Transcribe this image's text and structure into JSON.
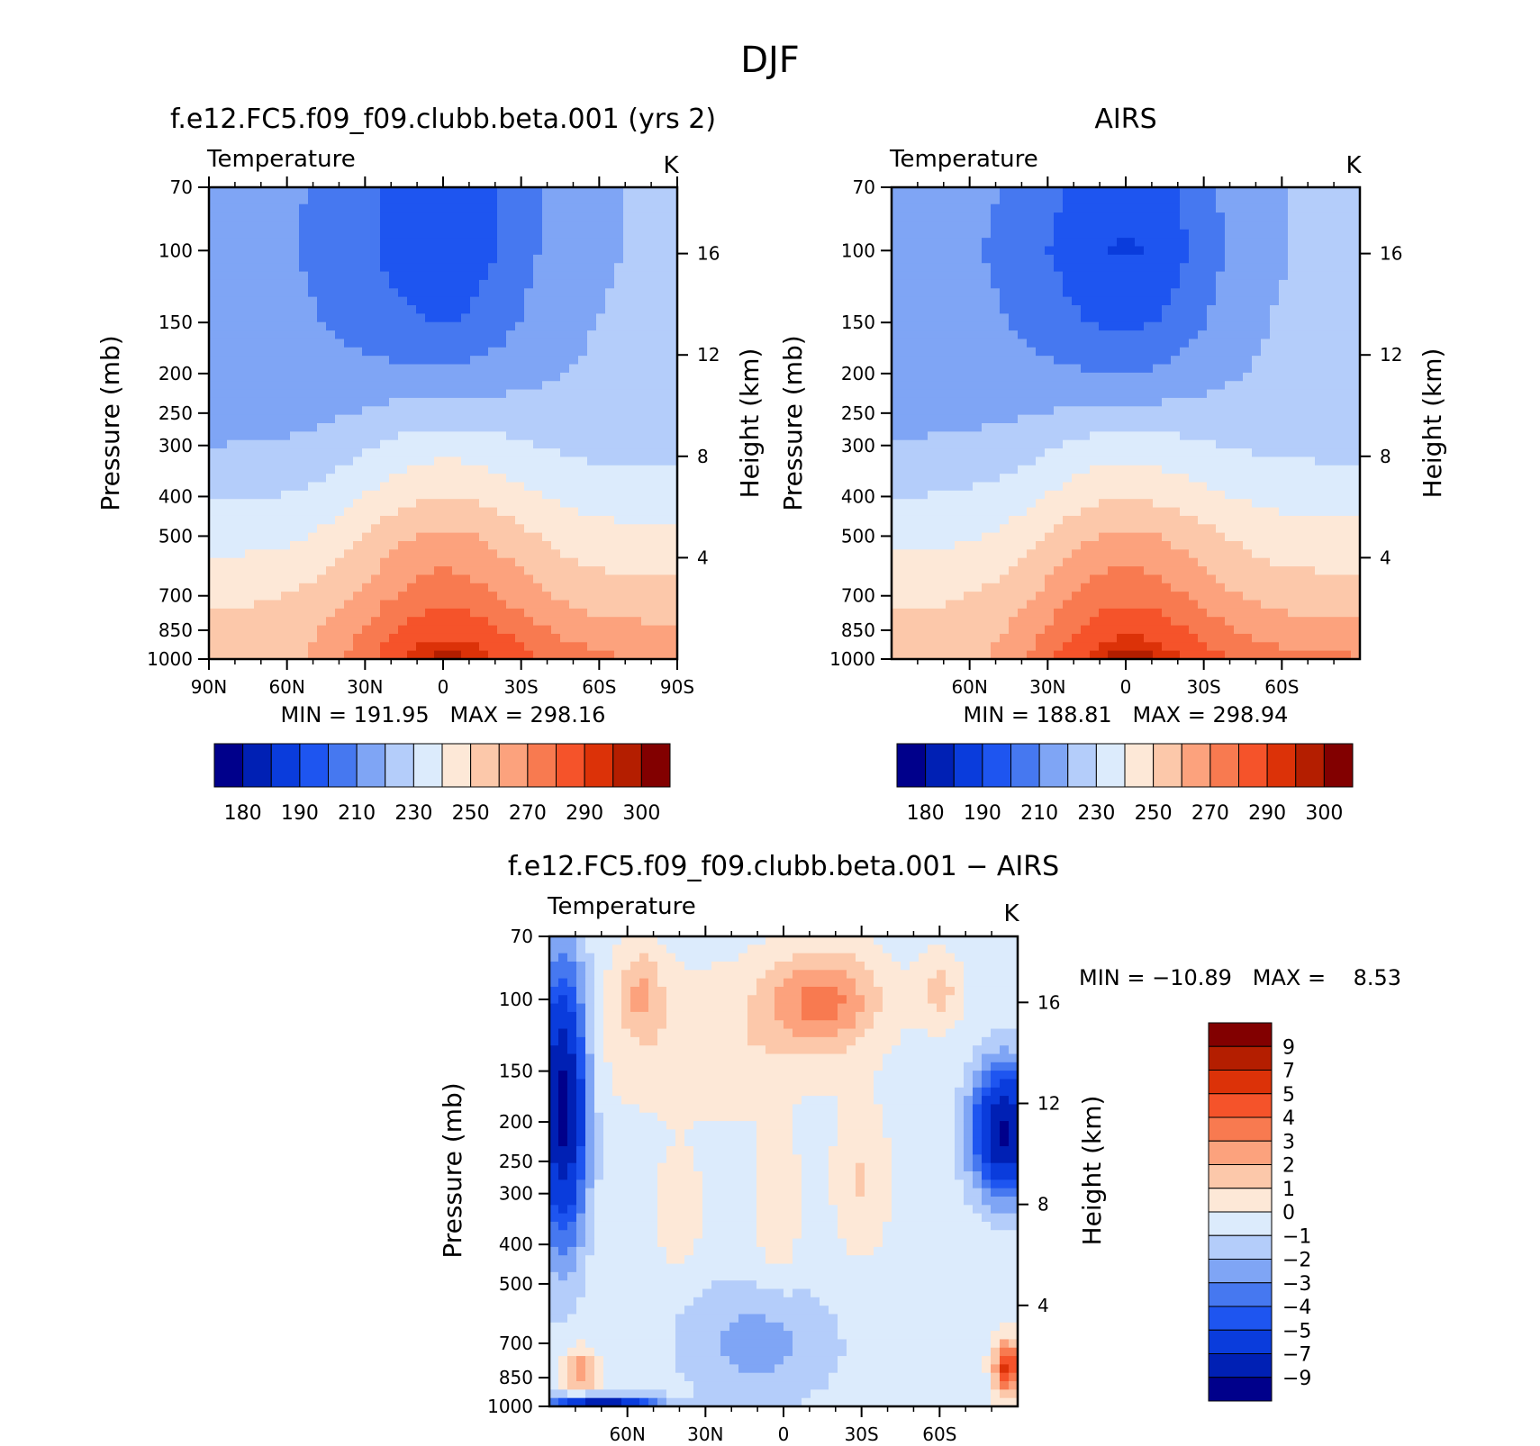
{
  "figure": {
    "title": "DJF"
  },
  "palettes": {
    "abs": [
      "#00008b",
      "#0020b4",
      "#0a3cdc",
      "#1e55f0",
      "#4678f0",
      "#7fa5f5",
      "#b4cdfa",
      "#dcebfc",
      "#fde8d7",
      "#fcc8aa",
      "#fca27d",
      "#f87a50",
      "#f5532a",
      "#dc3208",
      "#b41e00",
      "#820000"
    ],
    "diff": [
      "#00008b",
      "#0020b4",
      "#0a3cdc",
      "#1e55f0",
      "#4678f0",
      "#7fa5f5",
      "#b4cdfa",
      "#dcebfc",
      "#fde8d7",
      "#fcc8aa",
      "#fca27d",
      "#f87a50",
      "#f5532a",
      "#dc3208",
      "#b41e00",
      "#820000"
    ]
  },
  "chart_data": [
    {
      "type": "heatmap",
      "title": "f.e12.FC5.f09_f09.clubb.beta.001 (yrs 2)",
      "subtitle": "Temperature",
      "units": "K",
      "ylabel": "Pressure (mb)",
      "ylabel_right": "Height (km)",
      "x_ticks": [
        "90N",
        "60N",
        "30N",
        "0",
        "30S",
        "60S",
        "90S"
      ],
      "y_ticks": [
        "70",
        "100",
        "150",
        "200",
        "250",
        "300",
        "400",
        "500",
        "700",
        "850",
        "1000"
      ],
      "height_ticks": [
        "4",
        "8",
        "12",
        "16"
      ],
      "stats": "MIN = 191.95   MAX = 298.16",
      "colorbar_labels": [
        "180",
        "190",
        "210",
        "230",
        "250",
        "270",
        "290",
        "300"
      ],
      "levels": [
        175,
        180,
        185,
        190,
        200,
        210,
        220,
        230,
        240,
        250,
        260,
        270,
        280,
        290,
        295,
        300
      ],
      "min": 191.95,
      "max": 298.16,
      "profile": {
        "pressure": [
          70,
          100,
          150,
          200,
          250,
          300,
          400,
          500,
          700,
          850,
          1000
        ],
        "tropics": [
          193,
          193,
          200,
          212,
          225,
          236,
          250,
          262,
          276,
          287,
          297
        ],
        "nh": [
          213,
          212,
          213,
          214,
          216,
          220,
          229,
          236,
          248,
          253,
          254
        ],
        "sh": [
          221,
          221,
          222,
          222,
          223,
          226,
          235,
          242,
          253,
          262,
          270
        ]
      }
    },
    {
      "type": "heatmap",
      "title": "AIRS",
      "subtitle": "Temperature",
      "units": "K",
      "ylabel": "Pressure (mb)",
      "ylabel_right": "Height (km)",
      "x_ticks": [
        "60N",
        "30N",
        "0",
        "30S",
        "60S"
      ],
      "y_ticks": [
        "70",
        "100",
        "150",
        "200",
        "250",
        "300",
        "400",
        "500",
        "700",
        "850",
        "1000"
      ],
      "height_ticks": [
        "4",
        "8",
        "12",
        "16"
      ],
      "stats": "MIN = 188.81   MAX = 298.94",
      "colorbar_labels": [
        "180",
        "190",
        "210",
        "230",
        "250",
        "270",
        "290",
        "300"
      ],
      "levels": [
        175,
        180,
        185,
        190,
        200,
        210,
        220,
        230,
        240,
        250,
        260,
        270,
        280,
        290,
        295,
        300
      ],
      "min": 188.81,
      "max": 298.94,
      "profile": {
        "pressure": [
          70,
          100,
          150,
          200,
          250,
          300,
          400,
          500,
          700,
          850,
          1000
        ],
        "tropics": [
          194,
          189,
          198,
          210,
          223,
          235,
          249,
          262,
          277,
          288,
          298
        ],
        "nh": [
          214,
          213,
          214,
          215,
          217,
          221,
          230,
          237,
          248,
          252,
          254
        ],
        "sh": [
          222,
          222,
          223,
          223,
          224,
          227,
          236,
          243,
          254,
          263,
          271
        ]
      }
    },
    {
      "type": "heatmap",
      "title": "f.e12.FC5.f09_f09.clubb.beta.001 − AIRS",
      "subtitle": "Temperature",
      "units": "K",
      "ylabel": "Pressure (mb)",
      "ylabel_right": "Height (km)",
      "x_ticks": [
        "60N",
        "30N",
        "0",
        "30S",
        "60S"
      ],
      "y_ticks": [
        "70",
        "100",
        "150",
        "200",
        "250",
        "300",
        "400",
        "500",
        "700",
        "850",
        "1000"
      ],
      "height_ticks": [
        "4",
        "8",
        "12",
        "16"
      ],
      "stats": "MIN = −10.89   MAX =    8.53",
      "colorbar_labels": [
        "9",
        "7",
        "5",
        "4",
        "3",
        "2",
        "1",
        "0",
        "−1",
        "−2",
        "−3",
        "−4",
        "−5",
        "−7",
        "−9"
      ],
      "levels": [
        -11,
        -9,
        -7,
        -5,
        -4,
        -3,
        -2,
        -1,
        0,
        1,
        2,
        3,
        4,
        5,
        7,
        9
      ],
      "min": -10.89,
      "max": 8.53
    }
  ]
}
